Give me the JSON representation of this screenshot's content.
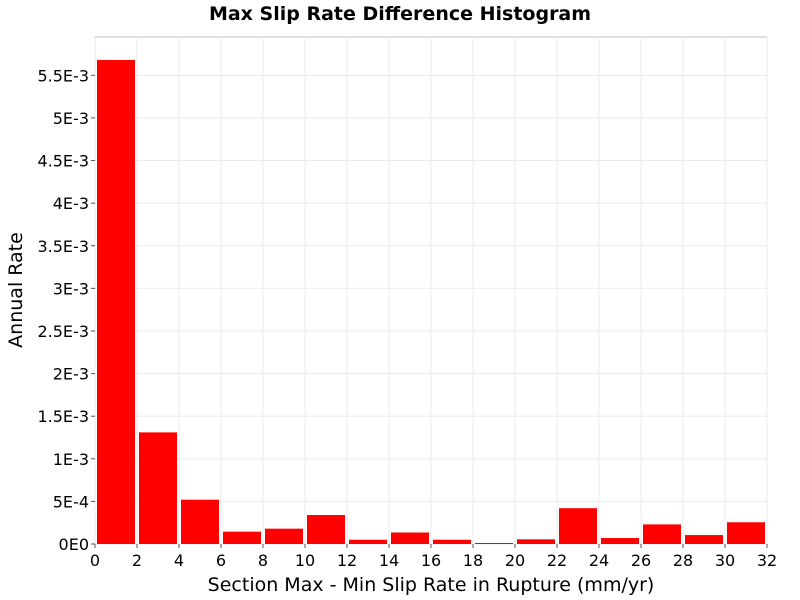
{
  "chart_data": {
    "type": "bar",
    "title": "Max Slip Rate Difference Histogram",
    "xlabel": "Section Max - Min Slip Rate in Rupture (mm/yr)",
    "ylabel": "Annual Rate",
    "xlim": [
      0,
      32
    ],
    "ylim": [
      0,
      0.00595
    ],
    "bin_width": 2,
    "x": [
      1,
      3,
      5,
      7,
      9,
      11,
      13,
      15,
      17,
      19,
      21,
      23,
      25,
      27,
      29,
      31
    ],
    "values": [
      0.00568,
      0.00131,
      0.00052,
      0.000145,
      0.00018,
      0.00034,
      5e-05,
      0.000135,
      5e-05,
      8e-06,
      5.5e-05,
      0.00042,
      7e-05,
      0.00023,
      0.000105,
      0.000255
    ],
    "x_ticks": [
      0,
      2,
      4,
      6,
      8,
      10,
      12,
      14,
      16,
      18,
      20,
      22,
      24,
      26,
      28,
      30,
      32
    ],
    "x_tick_labels": [
      "0",
      "2",
      "4",
      "6",
      "8",
      "10",
      "12",
      "14",
      "16",
      "18",
      "20",
      "22",
      "24",
      "26",
      "28",
      "30",
      "32"
    ],
    "y_ticks": [
      0,
      0.0005,
      0.001,
      0.0015,
      0.002,
      0.0025,
      0.003,
      0.0035,
      0.004,
      0.0045,
      0.005,
      0.0055
    ],
    "y_tick_labels": [
      "0E0",
      "5E-4",
      "1E-3",
      "1.5E-3",
      "2E-3",
      "2.5E-3",
      "3E-3",
      "3.5E-3",
      "4E-3",
      "4.5E-3",
      "5E-3",
      "5.5E-3"
    ],
    "grid": true,
    "bar_color": "#ff0000"
  }
}
